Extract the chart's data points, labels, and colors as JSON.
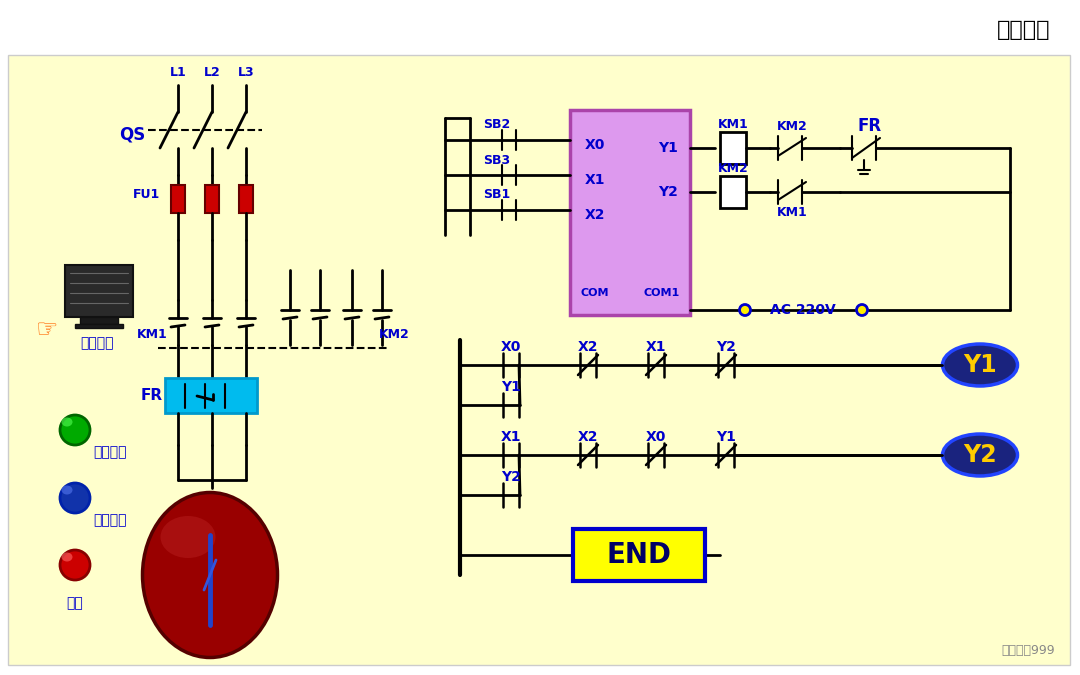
{
  "bg_color": "#FFFFCC",
  "white": "#FFFFFF",
  "blue": "#0000CC",
  "black": "#000000",
  "red": "#CC0000",
  "plc_fill": "#DD99EE",
  "plc_stroke": "#AA44AA",
  "cyan": "#00BBEE",
  "dark_red": "#880000",
  "yellow": "#FFFF00",
  "gold": "#FFCC00",
  "dark_blue": "#1A237E",
  "navy": "#000066",
  "gray": "#888888",
  "orange": "#FF6600",
  "title": "动画演示",
  "ac_text": "AC 220V",
  "watermark": "电气之家999",
  "qs_text": "QS",
  "fu1_text": "FU1",
  "km1_text": "KM1",
  "km2_text": "KM2",
  "fr_text": "FR",
  "end_text": "END",
  "power_text": "电源开关",
  "fwd_text": "正向启动",
  "rev_text": "反向启动",
  "stop_text": "停止",
  "l1": "L1",
  "l2": "L2",
  "l3": "L3",
  "sb2": "SB2",
  "sb3": "SB3",
  "sb1": "SB1",
  "x0": "X0",
  "x1": "X1",
  "x2": "X2",
  "y1": "Y1",
  "y2": "Y2",
  "com": "COM",
  "com1": "COM1"
}
